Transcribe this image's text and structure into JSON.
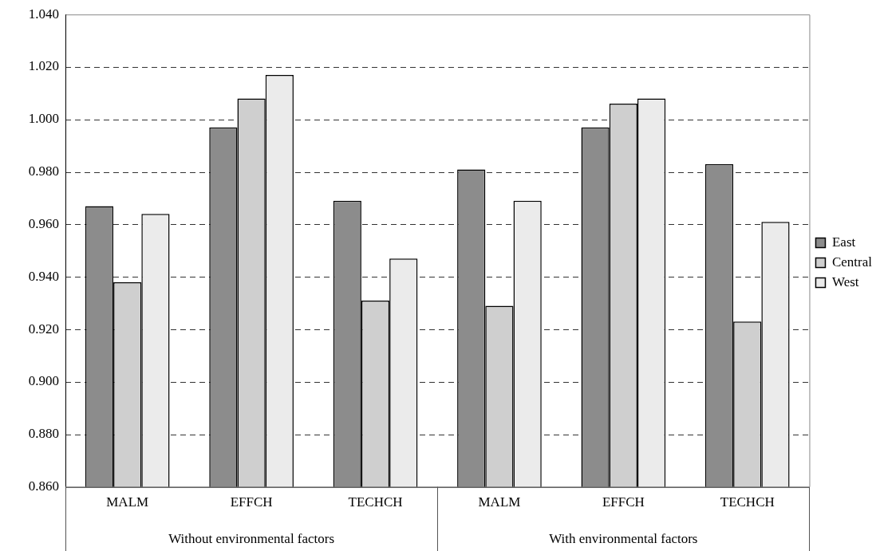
{
  "chart_data": {
    "type": "bar",
    "categories": [
      "MALM",
      "EFFCH",
      "TECHCH",
      "MALM",
      "EFFCH",
      "TECHCH"
    ],
    "series": [
      {
        "name": "East",
        "color": "#8c8c8c",
        "values": [
          0.967,
          0.997,
          0.969,
          0.981,
          0.997,
          0.983
        ]
      },
      {
        "name": "Central",
        "color": "#cfcfcf",
        "values": [
          0.938,
          1.008,
          0.931,
          0.929,
          1.006,
          0.923
        ]
      },
      {
        "name": "West",
        "color": "#ebebeb",
        "values": [
          0.964,
          1.017,
          0.947,
          0.969,
          1.008,
          0.961
        ]
      }
    ],
    "ylim": [
      0.86,
      1.04
    ],
    "yticks": [
      {
        "value": 0.86,
        "label": "0.860"
      },
      {
        "value": 0.88,
        "label": "0.880"
      },
      {
        "value": 0.9,
        "label": "0.900"
      },
      {
        "value": 0.92,
        "label": "0.920"
      },
      {
        "value": 0.94,
        "label": "0.940"
      },
      {
        "value": 0.96,
        "label": "0.960"
      },
      {
        "value": 0.98,
        "label": "0.980"
      },
      {
        "value": 1.0,
        "label": "1.000"
      },
      {
        "value": 1.02,
        "label": "1.020"
      },
      {
        "value": 1.04,
        "label": "1.040"
      }
    ],
    "grid": "y",
    "legend": "right",
    "annotations": [
      "Without environmental factors",
      "With environmental factors"
    ]
  }
}
